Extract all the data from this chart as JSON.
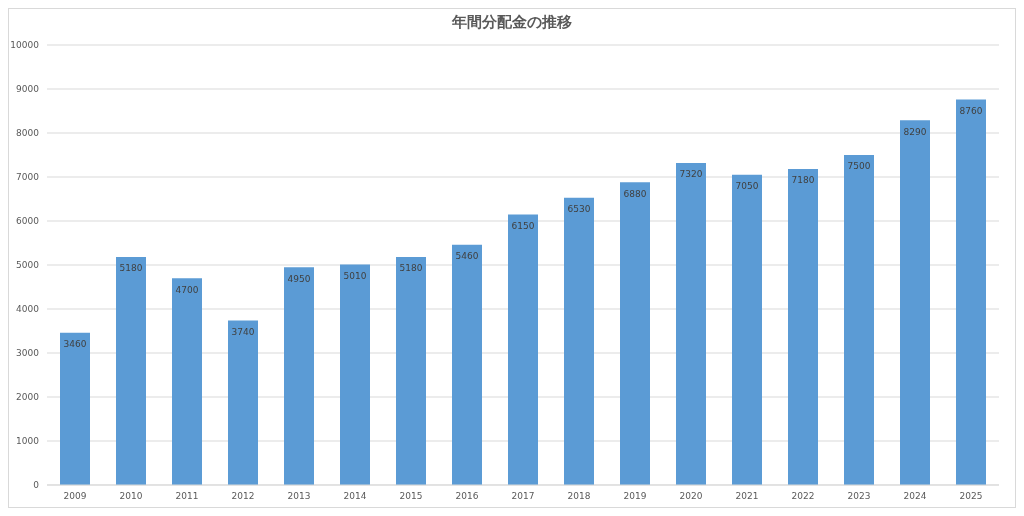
{
  "chart_data": {
    "type": "bar",
    "title": "年間分配金の推移",
    "categories": [
      "2009",
      "2010",
      "2011",
      "2012",
      "2013",
      "2014",
      "2015",
      "2016",
      "2017",
      "2018",
      "2019",
      "2020",
      "2021",
      "2022",
      "2023",
      "2024",
      "2025"
    ],
    "values": [
      3460,
      5180,
      4700,
      3740,
      4950,
      5010,
      5180,
      5460,
      6150,
      6530,
      6880,
      7320,
      7050,
      7180,
      7500,
      8290,
      8760
    ],
    "color": "#5b9bd5",
    "ylim": [
      0,
      10000
    ],
    "yticks": [
      0,
      1000,
      2000,
      3000,
      4000,
      5000,
      6000,
      7000,
      8000,
      9000,
      10000
    ],
    "grid": "y",
    "data_labels": true
  }
}
